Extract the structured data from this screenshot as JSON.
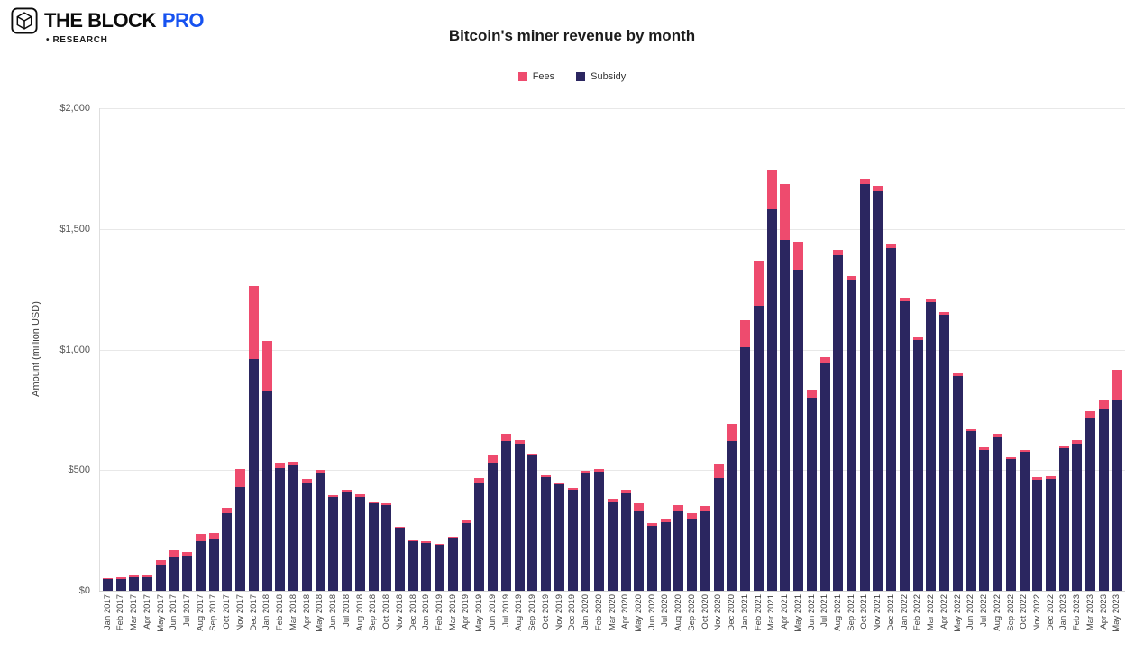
{
  "header": {
    "logo": {
      "brand": "THE BLOCK",
      "pro": "PRO",
      "research": "• RESEARCH",
      "brand_blue": "#1652f0"
    },
    "title": "Bitcoin's miner revenue by month"
  },
  "legend": [
    {
      "label": "Fees",
      "color": "#ee4b6e"
    },
    {
      "label": "Subsidy",
      "color": "#2b2660"
    }
  ],
  "chart_data": {
    "type": "bar",
    "stacked": true,
    "title": "Bitcoin's miner revenue by month",
    "xlabel": "",
    "ylabel": "Amount (million USD)",
    "ylim": [
      0,
      2000
    ],
    "yticks": [
      0,
      500,
      1000,
      1500,
      2000
    ],
    "ytick_labels": [
      "$0",
      "$500",
      "$1,000",
      "$1,500",
      "$2,000"
    ],
    "grid": true,
    "legend_position": "top",
    "categories": [
      "Jan 2017",
      "Feb 2017",
      "Mar 2017",
      "Apr 2017",
      "May 2017",
      "Jun 2017",
      "Jul 2017",
      "Aug 2017",
      "Sep 2017",
      "Oct 2017",
      "Nov 2017",
      "Dec 2017",
      "Jan 2018",
      "Feb 2018",
      "Mar 2018",
      "Apr 2018",
      "May 2018",
      "Jun 2018",
      "Jul 2018",
      "Aug 2018",
      "Sep 2018",
      "Oct 2018",
      "Nov 2018",
      "Dec 2018",
      "Jan 2019",
      "Feb 2019",
      "Mar 2019",
      "Apr 2019",
      "May 2019",
      "Jun 2019",
      "Jul 2019",
      "Aug 2019",
      "Sep 2019",
      "Oct 2019",
      "Nov 2019",
      "Dec 2019",
      "Jan 2020",
      "Feb 2020",
      "Mar 2020",
      "Apr 2020",
      "May 2020",
      "Jun 2020",
      "Jul 2020",
      "Aug 2020",
      "Sep 2020",
      "Oct 2020",
      "Nov 2020",
      "Dec 2020",
      "Jan 2021",
      "Feb 2021",
      "Mar 2021",
      "Apr 2021",
      "May 2021",
      "Jun 2021",
      "Jul 2021",
      "Aug 2021",
      "Sep 2021",
      "Oct 2021",
      "Nov 2021",
      "Dec 2021",
      "Jan 2022",
      "Feb 2022",
      "Mar 2022",
      "Apr 2022",
      "May 2022",
      "Jun 2022",
      "Jul 2022",
      "Aug 2022",
      "Sep 2022",
      "Oct 2022",
      "Nov 2022",
      "Dec 2022",
      "Jan 2023",
      "Feb 2023",
      "Mar 2023",
      "Apr 2023",
      "May 2023"
    ],
    "series": [
      {
        "name": "Subsidy",
        "color": "#2b2660",
        "values": [
          48,
          50,
          58,
          58,
          105,
          140,
          145,
          205,
          215,
          320,
          430,
          960,
          825,
          510,
          520,
          450,
          490,
          390,
          410,
          390,
          362,
          355,
          260,
          205,
          200,
          190,
          220,
          280,
          445,
          530,
          620,
          608,
          560,
          470,
          443,
          420,
          490,
          495,
          368,
          405,
          330,
          270,
          285,
          330,
          298,
          330,
          468,
          622,
          1010,
          1180,
          1580,
          1455,
          1330,
          800,
          945,
          1390,
          1288,
          1685,
          1655,
          1420,
          1200,
          1040,
          1195,
          1145,
          890,
          660,
          585,
          640,
          545,
          575,
          460,
          465,
          590,
          608,
          718,
          753,
          788
        ]
      },
      {
        "name": "Fees",
        "color": "#ee4b6e",
        "values": [
          5,
          5,
          7,
          7,
          22,
          30,
          15,
          30,
          25,
          25,
          75,
          305,
          210,
          22,
          15,
          12,
          10,
          8,
          10,
          10,
          6,
          6,
          6,
          6,
          5,
          5,
          6,
          10,
          22,
          35,
          30,
          17,
          10,
          10,
          7,
          6,
          8,
          10,
          12,
          12,
          32,
          12,
          10,
          26,
          22,
          20,
          57,
          68,
          112,
          190,
          165,
          230,
          115,
          35,
          25,
          22,
          17,
          22,
          25,
          15,
          15,
          12,
          15,
          12,
          12,
          10,
          10,
          10,
          10,
          10,
          10,
          10,
          12,
          17,
          27,
          37,
          127
        ]
      }
    ]
  }
}
